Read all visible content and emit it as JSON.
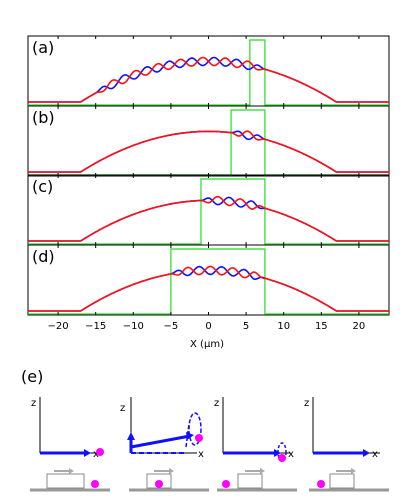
{
  "figure": {
    "panel_labels": [
      "(a)",
      "(b)",
      "(c)",
      "(d)"
    ],
    "xlabel": "X (μm)",
    "bottom_label": "(e)",
    "axis_letters": {
      "z": "z",
      "x": "x"
    }
  },
  "chart_data": [
    {
      "type": "line",
      "panel": "(a)",
      "xlim": [
        -24,
        24
      ],
      "series": [
        {
          "color": "#1010ff",
          "profile": "thomas-fermi",
          "oscillation_region": [
            -15,
            7.5
          ],
          "wavelength": 3.0
        },
        {
          "color": "#ff1010",
          "profile": "thomas-fermi",
          "oscillation_region": [
            -15,
            7.5
          ],
          "wavelength": 3.0
        }
      ],
      "window": {
        "color": "#22dd22",
        "x_range": [
          5.5,
          7.5
        ]
      }
    },
    {
      "type": "line",
      "panel": "(b)",
      "xlim": [
        -24,
        24
      ],
      "series": [
        {
          "color": "#1010ff",
          "profile": "thomas-fermi",
          "oscillation_region": [
            3,
            7.5
          ],
          "wavelength": 3.0
        },
        {
          "color": "#ff1010",
          "profile": "thomas-fermi",
          "oscillation_region": [
            3,
            7.5
          ],
          "wavelength": 3.0
        }
      ],
      "window": {
        "color": "#22dd22",
        "x_range": [
          3,
          7.5
        ]
      }
    },
    {
      "type": "line",
      "panel": "(c)",
      "xlim": [
        -24,
        24
      ],
      "series": [
        {
          "color": "#1010ff",
          "profile": "thomas-fermi",
          "oscillation_region": [
            -1,
            7.5
          ],
          "wavelength": 3.0
        },
        {
          "color": "#ff1010",
          "profile": "thomas-fermi",
          "oscillation_region": [
            -1,
            7.5
          ],
          "wavelength": 3.0
        }
      ],
      "window": {
        "color": "#22dd22",
        "x_range": [
          -1,
          7.5
        ]
      }
    },
    {
      "type": "line",
      "panel": "(d)",
      "xlim": [
        -24,
        24
      ],
      "xticks": [
        -20,
        -15,
        -10,
        -5,
        0,
        5,
        10,
        15,
        20
      ],
      "series": [
        {
          "color": "#1010ff",
          "profile": "thomas-fermi",
          "oscillation_region": [
            -5,
            7.5
          ],
          "wavelength": 3.0
        },
        {
          "color": "#ff1010",
          "profile": "thomas-fermi",
          "oscillation_region": [
            -5,
            7.5
          ],
          "wavelength": 3.0
        }
      ],
      "window": {
        "color": "#22dd22",
        "x_range": [
          -5,
          7.5
        ]
      }
    }
  ],
  "colors": {
    "blue": "#1010ff",
    "red": "#ff1010",
    "green": "#22dd22",
    "magenta": "#ff00ff",
    "gray": "#999999"
  }
}
